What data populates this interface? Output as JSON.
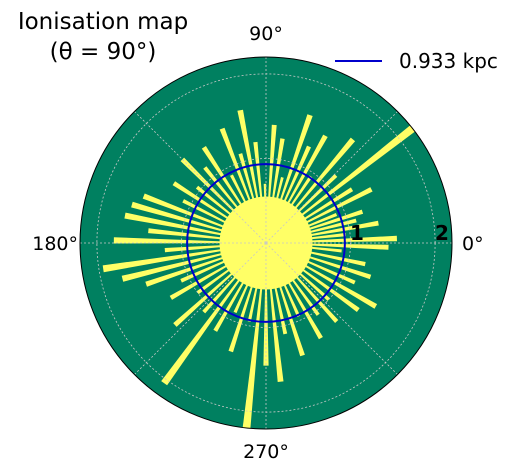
{
  "chart_data": {
    "type": "polar",
    "title_line1": "Ionisation map",
    "title_line2": "(θ = 90°)",
    "angular_ticks": [
      "90°",
      "180°",
      "270°",
      "0°"
    ],
    "radial_ticks": [
      "1",
      "2"
    ],
    "radial_range": [
      0,
      2.2
    ],
    "grid": true,
    "legend": {
      "placement": "top-right",
      "entries": [
        {
          "label": "0.933 kpc",
          "color": "#0000cc"
        }
      ]
    },
    "circle_radius": 0.933,
    "colors": {
      "neutral": "#008060",
      "ionised": "#ffff66",
      "circle": "#0000cc",
      "grid": "#c8c8c8"
    },
    "ionised_wedges": [
      {
        "angle": 2,
        "r": 1.55
      },
      {
        "angle": 6,
        "r": 0.95
      },
      {
        "angle": 10,
        "r": 1.35
      },
      {
        "angle": 14,
        "r": 1.1
      },
      {
        "angle": 18,
        "r": 1.2
      },
      {
        "angle": 22,
        "r": 0.9
      },
      {
        "angle": 27,
        "r": 1.4
      },
      {
        "angle": 32,
        "r": 1.2
      },
      {
        "angle": 38,
        "r": 2.2
      },
      {
        "angle": 44,
        "r": 1.15
      },
      {
        "angle": 50,
        "r": 1.6
      },
      {
        "angle": 56,
        "r": 0.95
      },
      {
        "angle": 61,
        "r": 1.45
      },
      {
        "angle": 66,
        "r": 1.25
      },
      {
        "angle": 71,
        "r": 1.6
      },
      {
        "angle": 76,
        "r": 0.8
      },
      {
        "angle": 81,
        "r": 1.25
      },
      {
        "angle": 86,
        "r": 1.4
      },
      {
        "angle": 91,
        "r": 0.7
      },
      {
        "angle": 96,
        "r": 1.2
      },
      {
        "angle": 101,
        "r": 1.6
      },
      {
        "angle": 106,
        "r": 1.1
      },
      {
        "angle": 111,
        "r": 1.45
      },
      {
        "angle": 117,
        "r": 0.9
      },
      {
        "angle": 123,
        "r": 1.35
      },
      {
        "angle": 129,
        "r": 1.15
      },
      {
        "angle": 135,
        "r": 1.4
      },
      {
        "angle": 141,
        "r": 1.05
      },
      {
        "angle": 147,
        "r": 1.3
      },
      {
        "angle": 153,
        "r": 1.1
      },
      {
        "angle": 159,
        "r": 1.55
      },
      {
        "angle": 164,
        "r": 1.65
      },
      {
        "angle": 169,
        "r": 1.7
      },
      {
        "angle": 174,
        "r": 1.4
      },
      {
        "angle": 179,
        "r": 1.8
      },
      {
        "angle": 184,
        "r": 1.2
      },
      {
        "angle": 189,
        "r": 1.95
      },
      {
        "angle": 194,
        "r": 1.75
      },
      {
        "angle": 199,
        "r": 1.5
      },
      {
        "angle": 204,
        "r": 1.1
      },
      {
        "angle": 210,
        "r": 1.3
      },
      {
        "angle": 216,
        "r": 1.0
      },
      {
        "angle": 222,
        "r": 1.45
      },
      {
        "angle": 228,
        "r": 1.1
      },
      {
        "angle": 234,
        "r": 2.05
      },
      {
        "angle": 240,
        "r": 1.2
      },
      {
        "angle": 246,
        "r": 0.9
      },
      {
        "angle": 252,
        "r": 1.35
      },
      {
        "angle": 258,
        "r": 0.95
      },
      {
        "angle": 264,
        "r": 2.2
      },
      {
        "angle": 270,
        "r": 1.45
      },
      {
        "angle": 276,
        "r": 1.65
      },
      {
        "angle": 282,
        "r": 1.1
      },
      {
        "angle": 288,
        "r": 1.4
      },
      {
        "angle": 294,
        "r": 0.95
      },
      {
        "angle": 300,
        "r": 1.3
      },
      {
        "angle": 306,
        "r": 1.05
      },
      {
        "angle": 312,
        "r": 1.25
      },
      {
        "angle": 318,
        "r": 1.0
      },
      {
        "angle": 324,
        "r": 1.35
      },
      {
        "angle": 330,
        "r": 1.5
      },
      {
        "angle": 336,
        "r": 1.15
      },
      {
        "angle": 342,
        "r": 1.3
      },
      {
        "angle": 348,
        "r": 1.2
      },
      {
        "angle": 354,
        "r": 0.9
      },
      {
        "angle": 358,
        "r": 1.45
      }
    ],
    "ionised_core_radius": 0.55
  }
}
